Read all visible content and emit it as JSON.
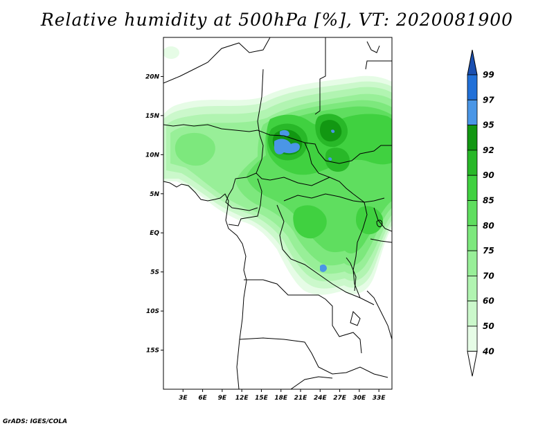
{
  "title": "Relative humidity at 500hPa [%], VT: 2020081900",
  "credit": "GrADS: IGES/COLA",
  "map": {
    "lon_range": [
      0,
      35
    ],
    "lat_range": [
      -20,
      25
    ],
    "lat_ticks": [
      {
        "value": 20,
        "label": "20N"
      },
      {
        "value": 15,
        "label": "15N"
      },
      {
        "value": 10,
        "label": "10N"
      },
      {
        "value": 5,
        "label": "5N"
      },
      {
        "value": 0,
        "label": "EQ"
      },
      {
        "value": -5,
        "label": "5S"
      },
      {
        "value": -10,
        "label": "10S"
      },
      {
        "value": -15,
        "label": "15S"
      }
    ],
    "lon_ticks": [
      {
        "value": 3,
        "label": "3E"
      },
      {
        "value": 6,
        "label": "6E"
      },
      {
        "value": 9,
        "label": "9E"
      },
      {
        "value": 12,
        "label": "12E"
      },
      {
        "value": 15,
        "label": "15E"
      },
      {
        "value": 18,
        "label": "18E"
      },
      {
        "value": 21,
        "label": "21E"
      },
      {
        "value": 24,
        "label": "24E"
      },
      {
        "value": 27,
        "label": "27E"
      },
      {
        "value": 30,
        "label": "30E"
      },
      {
        "value": 33,
        "label": "33E"
      }
    ]
  },
  "colorbar": {
    "levels": [
      "40",
      "50",
      "60",
      "70",
      "75",
      "80",
      "85",
      "90",
      "92",
      "95",
      "97",
      "99"
    ],
    "colors": [
      "#ffffff",
      "#e6fce6",
      "#cbf8cb",
      "#b1f4b1",
      "#98ef98",
      "#7de87d",
      "#5fde5f",
      "#40d140",
      "#28b828",
      "#129712",
      "#4a96e6",
      "#2170d8",
      "#1a4fb0"
    ]
  }
}
